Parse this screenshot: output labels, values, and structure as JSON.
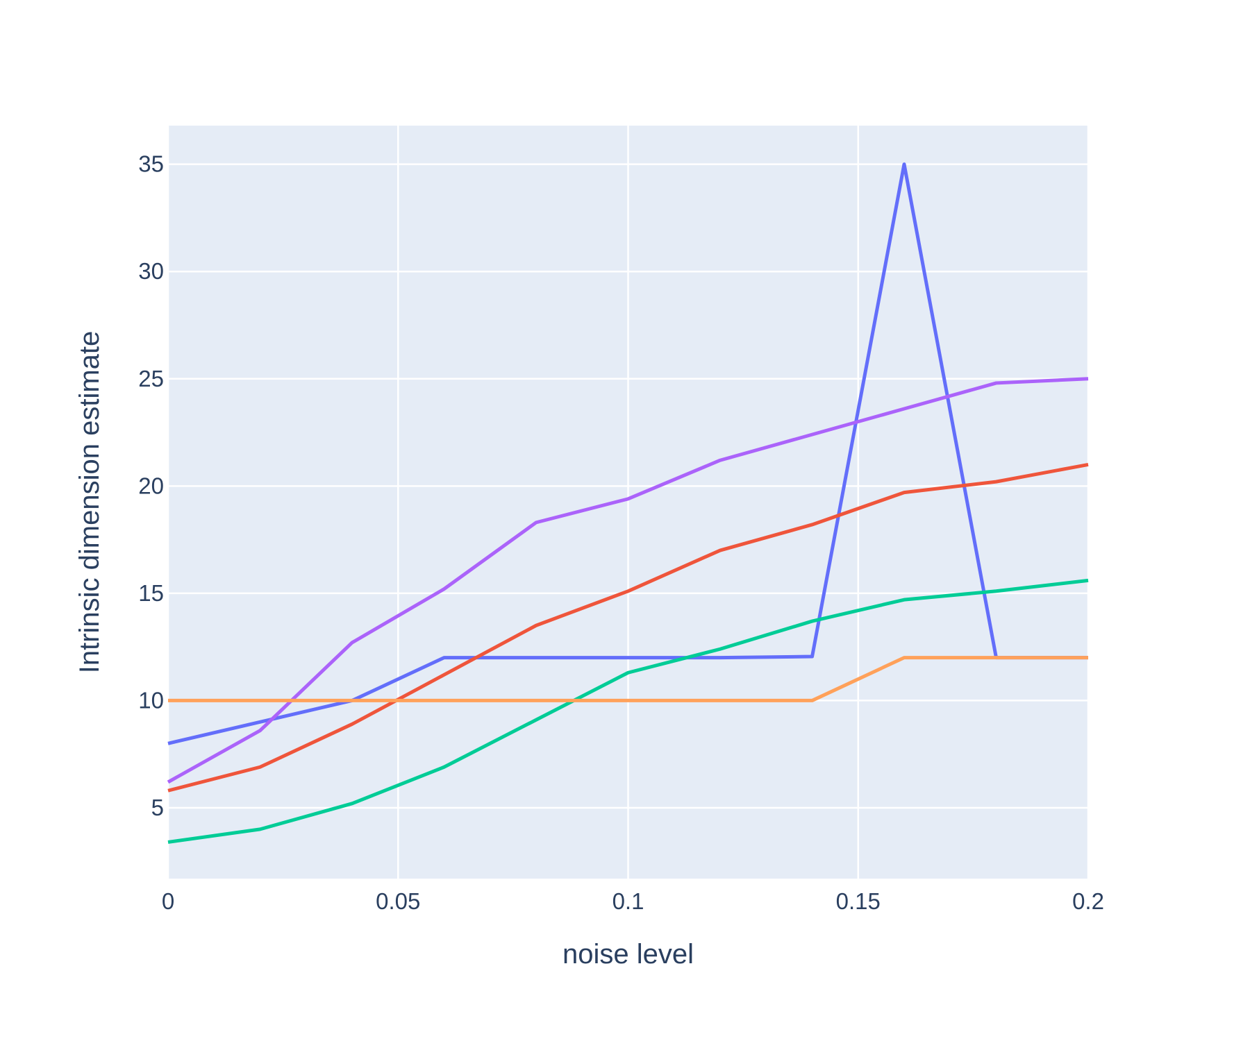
{
  "chart_data": {
    "type": "line",
    "title": "",
    "xlabel": "noise level",
    "ylabel": "Intrinsic dimension estimate",
    "xlim": [
      0,
      0.2
    ],
    "ylim": [
      1.7,
      36.8
    ],
    "x_ticks": [
      0,
      0.05,
      0.1,
      0.15,
      0.2
    ],
    "x_tick_labels": [
      "0",
      "0.05",
      "0.1",
      "0.15",
      "0.2"
    ],
    "y_ticks": [
      5,
      10,
      15,
      20,
      25,
      30,
      35
    ],
    "y_tick_labels": [
      "5",
      "10",
      "15",
      "20",
      "25",
      "30",
      "35"
    ],
    "grid": true,
    "legend": "none",
    "x": [
      0,
      0.02,
      0.04,
      0.06,
      0.08,
      0.1,
      0.12,
      0.14,
      0.16,
      0.18,
      0.2
    ],
    "series": [
      {
        "color": "#636efa",
        "values": [
          8.0,
          9.0,
          10.0,
          12.0,
          12.0,
          12.0,
          12.0,
          12.05,
          35.0,
          12.0,
          12.0
        ]
      },
      {
        "color": "#ef553b",
        "values": [
          5.8,
          6.9,
          8.9,
          11.2,
          13.5,
          15.1,
          17.0,
          18.2,
          19.7,
          20.2,
          21.0
        ]
      },
      {
        "color": "#00cc96",
        "values": [
          3.4,
          4.0,
          5.2,
          6.9,
          9.1,
          11.3,
          12.4,
          13.7,
          14.7,
          15.1,
          15.6
        ]
      },
      {
        "color": "#ab63fa",
        "values": [
          6.2,
          8.6,
          12.7,
          15.2,
          18.3,
          19.4,
          21.2,
          22.4,
          23.6,
          24.8,
          25.0
        ]
      },
      {
        "color": "#ffa15a",
        "values": [
          10.0,
          10.0,
          10.0,
          10.0,
          10.0,
          10.0,
          10.0,
          10.0,
          12.0,
          12.0,
          12.0
        ]
      }
    ],
    "plot_background": "#e5ecf6",
    "grid_color": "#ffffff",
    "text_color": "#2a3f5f"
  }
}
